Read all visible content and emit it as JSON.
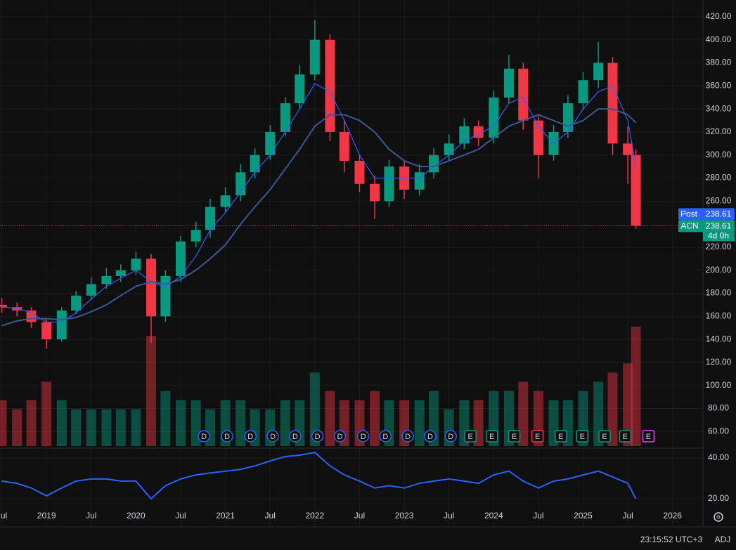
{
  "chart_data": {
    "type": "candlestick",
    "xlim": [
      2018.48,
      2026.34
    ],
    "xticks": [
      {
        "value": 2018.5,
        "label": "Jul"
      },
      2019,
      {
        "value": 2019.5,
        "label": "Jul"
      },
      2020,
      {
        "value": 2020.5,
        "label": "Jul"
      },
      2021,
      {
        "value": 2021.5,
        "label": "Jul"
      },
      2022,
      {
        "value": 2022.5,
        "label": "Jul"
      },
      2023,
      {
        "value": 2023.5,
        "label": "Jul"
      },
      2024,
      {
        "value": 2024.5,
        "label": "Jul"
      },
      2025,
      {
        "value": 2025.5,
        "label": "Jul"
      },
      2026
    ],
    "ylim": [
      47.4,
      434.6
    ],
    "yticks": [
      {
        "value": 60,
        "label": "60.00"
      },
      {
        "value": 80,
        "label": "80.00"
      },
      {
        "value": 100,
        "label": "100.00"
      },
      {
        "value": 120,
        "label": "120.00"
      },
      {
        "value": 140,
        "label": "140.00"
      },
      {
        "value": 160,
        "label": "160.00"
      },
      {
        "value": 180,
        "label": "180.00"
      },
      {
        "value": 200,
        "label": "200.00"
      },
      {
        "value": 220,
        "label": "220.00"
      },
      {
        "value": 260,
        "label": "260.00"
      },
      {
        "value": 280,
        "label": "280.00"
      },
      {
        "value": 300,
        "label": "300.00"
      },
      {
        "value": 320,
        "label": "320.00"
      },
      {
        "value": 340,
        "label": "340.00"
      },
      {
        "value": 360,
        "label": "360.00"
      },
      {
        "value": 380,
        "label": "380.00"
      },
      {
        "value": 400,
        "label": "400.00"
      },
      {
        "value": 420,
        "label": "420.00"
      }
    ],
    "grid": true,
    "up_color": "#089981",
    "down_color": "#f23645",
    "candles": {
      "x": [
        2018.5,
        2018.67,
        2018.83,
        2019.0,
        2019.17,
        2019.33,
        2019.5,
        2019.67,
        2019.83,
        2020.0,
        2020.17,
        2020.33,
        2020.5,
        2020.67,
        2020.83,
        2021.0,
        2021.17,
        2021.33,
        2021.5,
        2021.67,
        2021.83,
        2022.0,
        2022.17,
        2022.33,
        2022.5,
        2022.67,
        2022.83,
        2023.0,
        2023.17,
        2023.33,
        2023.5,
        2023.67,
        2023.83,
        2024.0,
        2024.17,
        2024.33,
        2024.5,
        2024.67,
        2024.83,
        2025.0,
        2025.17,
        2025.33,
        2025.5,
        2025.59
      ],
      "open": [
        170,
        168,
        165,
        155,
        140,
        165,
        178,
        188,
        195,
        200,
        210,
        160,
        195,
        225,
        235,
        255,
        265,
        285,
        300,
        320,
        345,
        370,
        400,
        320,
        295,
        275,
        260,
        290,
        270,
        285,
        300,
        310,
        325,
        315,
        350,
        375,
        330,
        300,
        320,
        345,
        365,
        380,
        310,
        300
      ],
      "high": [
        176,
        172,
        168,
        158,
        168,
        182,
        194,
        202,
        205,
        216,
        214,
        200,
        230,
        242,
        262,
        272,
        292,
        306,
        326,
        350,
        378,
        417,
        405,
        330,
        300,
        282,
        296,
        295,
        292,
        306,
        318,
        332,
        330,
        356,
        387,
        380,
        335,
        326,
        352,
        372,
        398,
        385,
        325,
        305
      ],
      "low": [
        163,
        160,
        150,
        132,
        138,
        162,
        174,
        184,
        190,
        196,
        137,
        155,
        190,
        220,
        228,
        250,
        260,
        280,
        296,
        316,
        340,
        365,
        312,
        285,
        268,
        245,
        255,
        262,
        265,
        280,
        295,
        305,
        308,
        310,
        345,
        322,
        280,
        295,
        315,
        340,
        358,
        300,
        275,
        236
      ],
      "close": [
        168,
        165,
        155,
        140,
        165,
        178,
        188,
        195,
        200,
        210,
        160,
        195,
        225,
        235,
        255,
        265,
        285,
        300,
        320,
        345,
        370,
        400,
        320,
        295,
        275,
        260,
        290,
        270,
        285,
        300,
        310,
        325,
        315,
        350,
        375,
        330,
        300,
        320,
        345,
        365,
        380,
        310,
        300,
        238.61
      ]
    },
    "lines": [
      {
        "color": "#2962ff",
        "values": [
          168,
          167,
          163,
          155,
          155,
          163,
          175,
          186,
          193,
          200,
          190,
          185,
          195,
          212,
          235,
          250,
          268,
          285,
          300,
          320,
          340,
          362,
          355,
          330,
          300,
          280,
          280,
          280,
          280,
          290,
          300,
          312,
          318,
          325,
          345,
          350,
          325,
          310,
          320,
          340,
          355,
          360,
          330,
          290
        ]
      },
      {
        "color": "#3b5998",
        "values": [
          152,
          156,
          158,
          158,
          157,
          159,
          164,
          170,
          178,
          186,
          190,
          188,
          192,
          200,
          210,
          222,
          240,
          255,
          270,
          288,
          305,
          325,
          335,
          335,
          330,
          320,
          305,
          295,
          290,
          290,
          295,
          300,
          305,
          315,
          325,
          330,
          335,
          330,
          325,
          330,
          340,
          340,
          335,
          328
        ]
      }
    ],
    "volume": {
      "values": [
        5,
        4,
        5,
        7,
        5,
        4,
        4,
        4,
        4,
        4,
        12,
        6,
        5,
        5,
        4,
        5,
        5,
        4,
        4,
        5,
        5,
        8,
        6,
        5,
        5,
        6,
        5,
        5,
        5,
        6,
        4,
        5,
        5,
        6,
        6,
        7,
        6,
        5,
        5,
        6,
        7,
        8,
        9,
        13
      ]
    },
    "indicator": {
      "color": "#2962ff",
      "log_scale": true,
      "ylim": [
        12.7,
        46.2
      ],
      "yticks": [
        {
          "value": 20,
          "label": "20.00"
        },
        {
          "value": 40,
          "label": "40.00"
        }
      ],
      "values": [
        27,
        26,
        24,
        21,
        24,
        27,
        28,
        28,
        27,
        27,
        20,
        25,
        28,
        30,
        31,
        32,
        33,
        35,
        38,
        41,
        42,
        44,
        35,
        30,
        27,
        24,
        25,
        24,
        26,
        27,
        28,
        27,
        26,
        30,
        32,
        27,
        24,
        27,
        28,
        30,
        32,
        29,
        26,
        20
      ]
    },
    "events": [
      {
        "x": 2020.76,
        "label": "D",
        "color": "#2962ff"
      },
      {
        "x": 2021.02,
        "label": "D",
        "color": "#2962ff"
      },
      {
        "x": 2021.28,
        "label": "D",
        "color": "#2962ff"
      },
      {
        "x": 2021.53,
        "label": "D",
        "color": "#2962ff"
      },
      {
        "x": 2021.78,
        "label": "D",
        "color": "#2962ff"
      },
      {
        "x": 2022.03,
        "label": "D",
        "color": "#2962ff"
      },
      {
        "x": 2022.28,
        "label": "D",
        "color": "#2962ff"
      },
      {
        "x": 2022.54,
        "label": "D",
        "color": "#2962ff"
      },
      {
        "x": 2022.79,
        "label": "D",
        "color": "#2962ff"
      },
      {
        "x": 2023.04,
        "label": "D",
        "color": "#2962ff"
      },
      {
        "x": 2023.29,
        "label": "D",
        "color": "#2962ff"
      },
      {
        "x": 2023.52,
        "label": "D",
        "color": "#2962ff"
      },
      {
        "x": 2023.74,
        "label": "E",
        "color": "#089981"
      },
      {
        "x": 2023.98,
        "label": "E",
        "color": "#089981"
      },
      {
        "x": 2024.23,
        "label": "E",
        "color": "#089981"
      },
      {
        "x": 2024.49,
        "label": "E",
        "color": "#f23645"
      },
      {
        "x": 2024.75,
        "label": "E",
        "color": "#089981"
      },
      {
        "x": 2024.99,
        "label": "E",
        "color": "#089981"
      },
      {
        "x": 2025.24,
        "label": "E",
        "color": "#089981"
      },
      {
        "x": 2025.47,
        "label": "E",
        "color": "#089981"
      },
      {
        "x": 2025.73,
        "label": "E",
        "color": "#e040fb"
      }
    ],
    "last_price": 238.61,
    "post_label": "Post",
    "post_price": 238.61,
    "symbol": "ACN",
    "countdown": "4d 0h"
  },
  "status_bar": {
    "time": "23:15:52 UTC+3",
    "adjustment": "ADJ"
  }
}
